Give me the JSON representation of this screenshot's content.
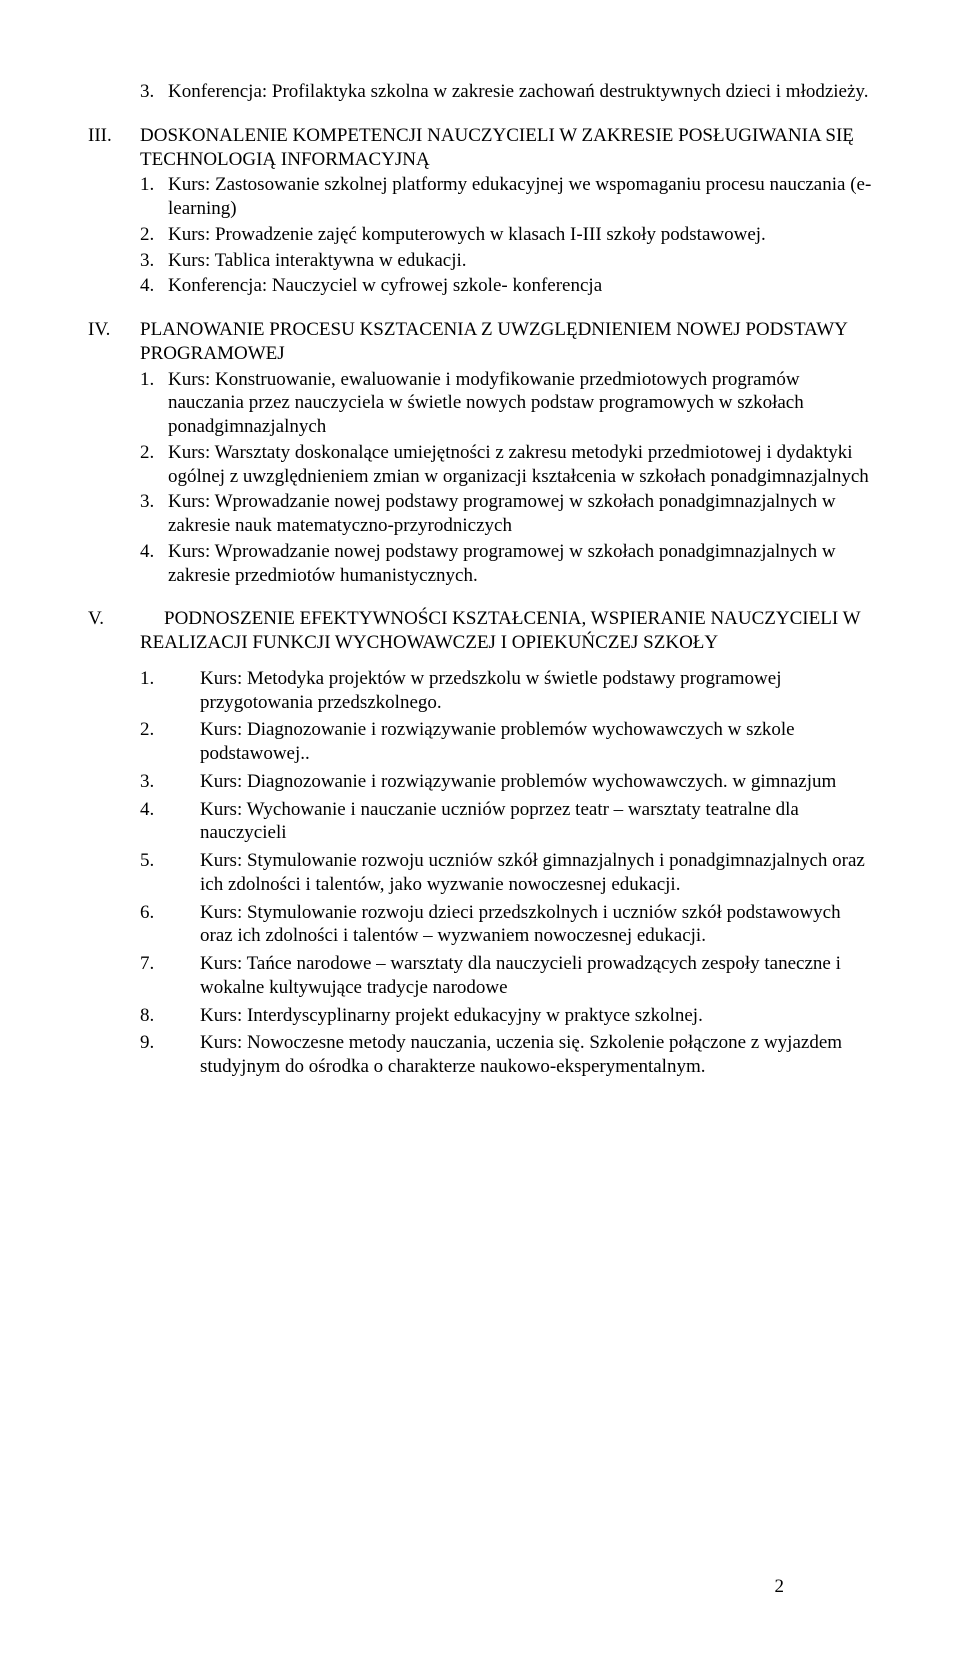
{
  "s0": {
    "items": [
      {
        "n": "3.",
        "t": "Konferencja: Profilaktyka szkolna w zakresie zachowań destruktywnych  dzieci i młodzieży."
      }
    ]
  },
  "s3": {
    "roman": "III.",
    "title": "DOSKONALENIE KOMPETENCJI NAUCZYCIELI W ZAKRESIE POSŁUGIWANIA SIĘ TECHNOLOGIĄ INFORMACYJNĄ",
    "items": [
      {
        "n": "1.",
        "t": "Kurs: Zastosowanie szkolnej platformy edukacyjnej we wspomaganiu procesu nauczania (e-learning)"
      },
      {
        "n": "2.",
        "t": "Kurs: Prowadzenie zajęć komputerowych w klasach I-III szkoły podstawowej."
      },
      {
        "n": "3.",
        "t": "Kurs: Tablica interaktywna w edukacji."
      },
      {
        "n": "4.",
        "t": "Konferencja: Nauczyciel w cyfrowej szkole- konferencja"
      }
    ]
  },
  "s4": {
    "roman": "IV.",
    "title": "PLANOWANIE PROCESU KSZTACENIA   Z UWZGLĘDNIENIEM  NOWEJ PODSTAWY PROGRAMOWEJ",
    "items": [
      {
        "n": "1.",
        "t": "Kurs: Konstruowanie, ewaluowanie i modyfikowanie przedmiotowych programów nauczania przez nauczyciela w świetle nowych podstaw programowych w szkołach ponadgimnazjalnych"
      },
      {
        "n": "2.",
        "t": "Kurs: Warsztaty doskonalące umiejętności z zakresu metodyki przedmiotowej i dydaktyki ogólnej z uwzględnieniem zmian w organizacji kształcenia w szkołach ponadgimnazjalnych"
      },
      {
        "n": "3.",
        "t": "Kurs: Wprowadzanie  nowej podstawy programowej w szkołach ponadgimnazjalnych w zakresie nauk matematyczno-przyrodniczych"
      },
      {
        "n": "4.",
        "t": "Kurs: Wprowadzanie  nowej podstawy programowej w szkołach ponadgimnazjalnych w zakresie przedmiotów humanistycznych."
      }
    ]
  },
  "s5": {
    "roman": "V.",
    "title": "PODNOSZENIE EFEKTYWNOŚCI KSZTAŁCENIA, WSPIERANIE NAUCZYCIELI W REALIZACJI FUNKCJI WYCHOWAWCZEJ I OPIEKUŃCZEJ SZKOŁY",
    "items": [
      {
        "n": "1.",
        "t": "Kurs: Metodyka projektów w przedszkolu w świetle podstawy programowej przygotowania przedszkolnego."
      },
      {
        "n": "2.",
        "t": "Kurs: Diagnozowanie i rozwiązywanie problemów wychowawczych w szkole podstawowej.."
      },
      {
        "n": "3.",
        "t": "Kurs: Diagnozowanie i rozwiązywanie problemów wychowawczych. w gimnazjum"
      },
      {
        "n": "4.",
        "t": "Kurs: Wychowanie i nauczanie uczniów poprzez teatr – warsztaty teatralne dla nauczycieli"
      },
      {
        "n": "5.",
        "t": "Kurs: Stymulowanie rozwoju uczniów  szkół gimnazjalnych i ponadgimnazjalnych oraz ich zdolności i talentów, jako wyzwanie nowoczesnej edukacji."
      },
      {
        "n": "6.",
        "t": "Kurs: Stymulowanie rozwoju dzieci przedszkolnych i uczniów szkół podstawowych  oraz ich zdolności i talentów  – wyzwaniem nowoczesnej edukacji."
      },
      {
        "n": "7.",
        "t": "Kurs: Tańce narodowe – warsztaty dla nauczycieli prowadzących zespoły taneczne i wokalne  kultywujące tradycje narodowe"
      },
      {
        "n": "8.",
        "t": "Kurs: Interdyscyplinarny projekt edukacyjny  w praktyce szkolnej."
      },
      {
        "n": "9.",
        "t": "Kurs: Nowoczesne metody nauczania, uczenia się.  Szkolenie połączone z wyjazdem studyjnym do ośrodka o charakterze naukowo-eksperymentalnym."
      }
    ]
  },
  "pageNumber": "2"
}
